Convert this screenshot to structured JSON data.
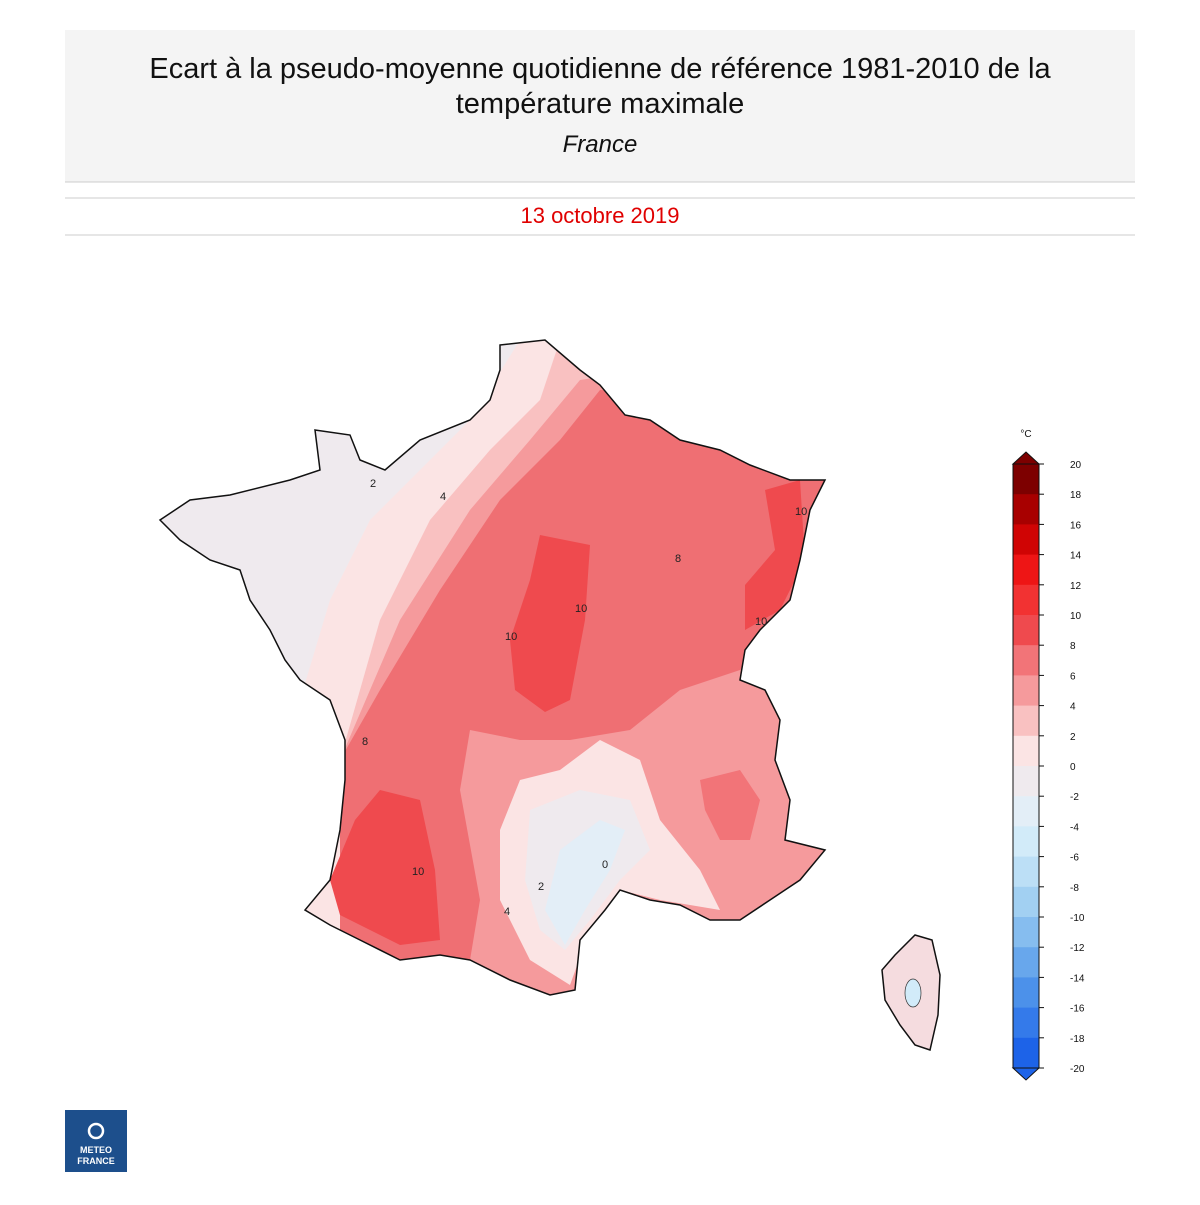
{
  "header": {
    "title_line1": "Ecart à la pseudo-moyenne quotidienne de référence 1981-2010 de la",
    "title_line2": "température maximale",
    "region": "France",
    "date": "13 octobre 2019"
  },
  "colorbar": {
    "unit": "°C",
    "lim": [
      -20,
      20
    ],
    "ticks": [
      20,
      18,
      16,
      14,
      12,
      10,
      8,
      6,
      4,
      2,
      0,
      -2,
      -4,
      -6,
      -8,
      -10,
      -12,
      -14,
      -16,
      -18,
      -20
    ],
    "colors": [
      "#7d0000",
      "#a80000",
      "#d00404",
      "#ee1515",
      "#f23232",
      "#ef4a4e",
      "#f27478",
      "#f59a9c",
      "#f9c1c1",
      "#fbe4e4",
      "#efeaee",
      "#e3eef7",
      "#d2ebf9",
      "#bcdff6",
      "#a2d0f2",
      "#86bdef",
      "#68a7ec",
      "#4c91ea",
      "#347aea",
      "#1d63e8"
    ]
  },
  "map": {
    "contour_labels": [
      "2",
      "4",
      "10",
      "10",
      "8",
      "10",
      "10",
      "8",
      "10",
      "2",
      "4",
      "0"
    ]
  },
  "logo": {
    "line1": "METEO",
    "line2": "FRANCE"
  }
}
